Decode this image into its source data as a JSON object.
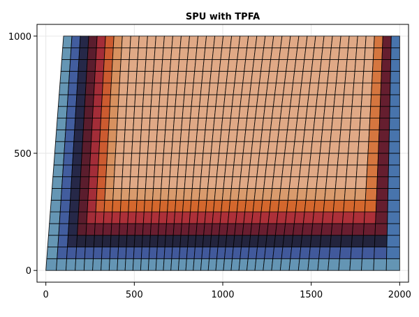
{
  "chart_data": {
    "type": "heatmap",
    "title": "SPU with TPFA",
    "xlabel": "",
    "ylabel": "",
    "xlim": [
      -50,
      2050
    ],
    "ylim": [
      -50,
      1050
    ],
    "xticks": [
      0,
      500,
      1000,
      1500,
      2000
    ],
    "yticks": [
      0,
      500,
      1000
    ],
    "xtick_labels": [
      "0",
      "500",
      "1000",
      "1500",
      "2000"
    ],
    "ytick_labels": [
      "0",
      "500",
      "1000"
    ],
    "grid": true,
    "mesh": {
      "nx": 40,
      "ny": 20,
      "domain_x": [
        0,
        2000
      ],
      "domain_y": [
        0,
        1000
      ],
      "description": "skewed quadrilateral grid; vertical lines lean to the right, converging toward lower-right corner"
    },
    "field": {
      "colormap": [
        "#7fa7b0",
        "#4d86b8",
        "#3a3f8a",
        "#1a1a20",
        "#7a1f33",
        "#b2323a",
        "#d4672d",
        "#d89a6a",
        "#e0a986"
      ],
      "description": "saturation front: high values (orange) in interior, low values (teal) along left and bottom edges"
    }
  }
}
